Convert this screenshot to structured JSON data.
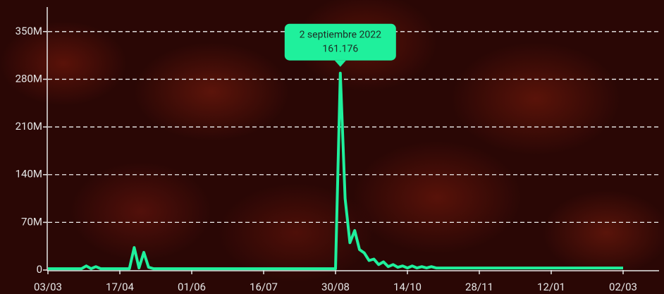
{
  "chart_data": {
    "type": "line",
    "categories": [
      "03/03",
      null,
      null,
      null,
      null,
      null,
      null,
      null,
      null,
      null,
      null,
      null,
      null,
      null,
      null,
      "17/04",
      null,
      null,
      null,
      null,
      null,
      null,
      null,
      null,
      null,
      null,
      null,
      null,
      null,
      null,
      "01/06",
      null,
      null,
      null,
      null,
      null,
      null,
      null,
      null,
      null,
      null,
      null,
      null,
      null,
      null,
      "16/07",
      null,
      null,
      null,
      null,
      null,
      null,
      null,
      null,
      null,
      null,
      null,
      null,
      null,
      null,
      "30/08",
      null,
      null,
      null,
      null,
      null,
      null,
      null,
      null,
      null,
      null,
      null,
      null,
      null,
      null,
      "14/10",
      null,
      null,
      null,
      null,
      null,
      null,
      null,
      null,
      null,
      null,
      null,
      null,
      null,
      null,
      "28/11",
      null,
      null,
      null,
      null,
      null,
      null,
      null,
      null,
      null,
      null,
      null,
      null,
      null,
      null,
      "12/01",
      null,
      null,
      null,
      null,
      null,
      null,
      null,
      null,
      null,
      null,
      null,
      null,
      null,
      null,
      "02/03"
    ],
    "values": [
      2000000,
      2000000,
      2000000,
      2000000,
      2000000,
      2000000,
      2000000,
      2000000,
      6000000,
      2000000,
      5000000,
      2000000,
      2000000,
      2000000,
      2000000,
      2000000,
      2000000,
      2000000,
      33000000,
      3000000,
      26000000,
      4000000,
      2000000,
      2000000,
      2000000,
      2000000,
      2000000,
      2000000,
      2000000,
      2000000,
      2000000,
      2000000,
      2000000,
      2000000,
      2000000,
      2000000,
      2000000,
      2000000,
      2000000,
      2000000,
      2000000,
      2000000,
      2000000,
      2000000,
      2000000,
      2000000,
      2000000,
      2000000,
      2000000,
      2000000,
      2000000,
      2000000,
      2000000,
      2000000,
      2000000,
      2000000,
      2000000,
      2000000,
      2000000,
      2000000,
      2000000,
      289000000,
      105000000,
      40000000,
      58000000,
      30000000,
      25000000,
      14000000,
      16000000,
      8000000,
      12000000,
      5000000,
      8000000,
      4000000,
      6000000,
      3000000,
      6000000,
      3000000,
      5000000,
      3000000,
      5000000,
      3000000,
      3000000,
      3000000,
      3000000,
      3000000,
      3000000,
      3000000,
      3000000,
      3000000,
      3000000,
      3000000,
      3000000,
      3000000,
      3000000,
      3000000,
      3000000,
      3000000,
      3000000,
      3000000,
      3000000,
      3000000,
      3000000,
      3000000,
      3000000,
      3000000,
      3000000,
      3000000,
      3000000,
      3000000,
      3000000,
      3000000,
      3000000,
      3000000,
      3000000,
      3000000,
      3000000,
      3000000,
      3000000,
      3000000,
      3000000
    ],
    "color": "#1ff09c",
    "ylim": [
      0,
      386000000
    ],
    "yticks": [
      0,
      {
        "value": 70000000,
        "label": "70M"
      },
      {
        "value": 140000000,
        "label": "140M"
      },
      {
        "value": 210000000,
        "label": "210M"
      },
      {
        "value": 280000000,
        "label": "280M"
      },
      {
        "value": 350000000,
        "label": "350M"
      }
    ],
    "grid": true,
    "tooltip": {
      "title": "2 septiembre 2022",
      "value": "161.176"
    }
  }
}
